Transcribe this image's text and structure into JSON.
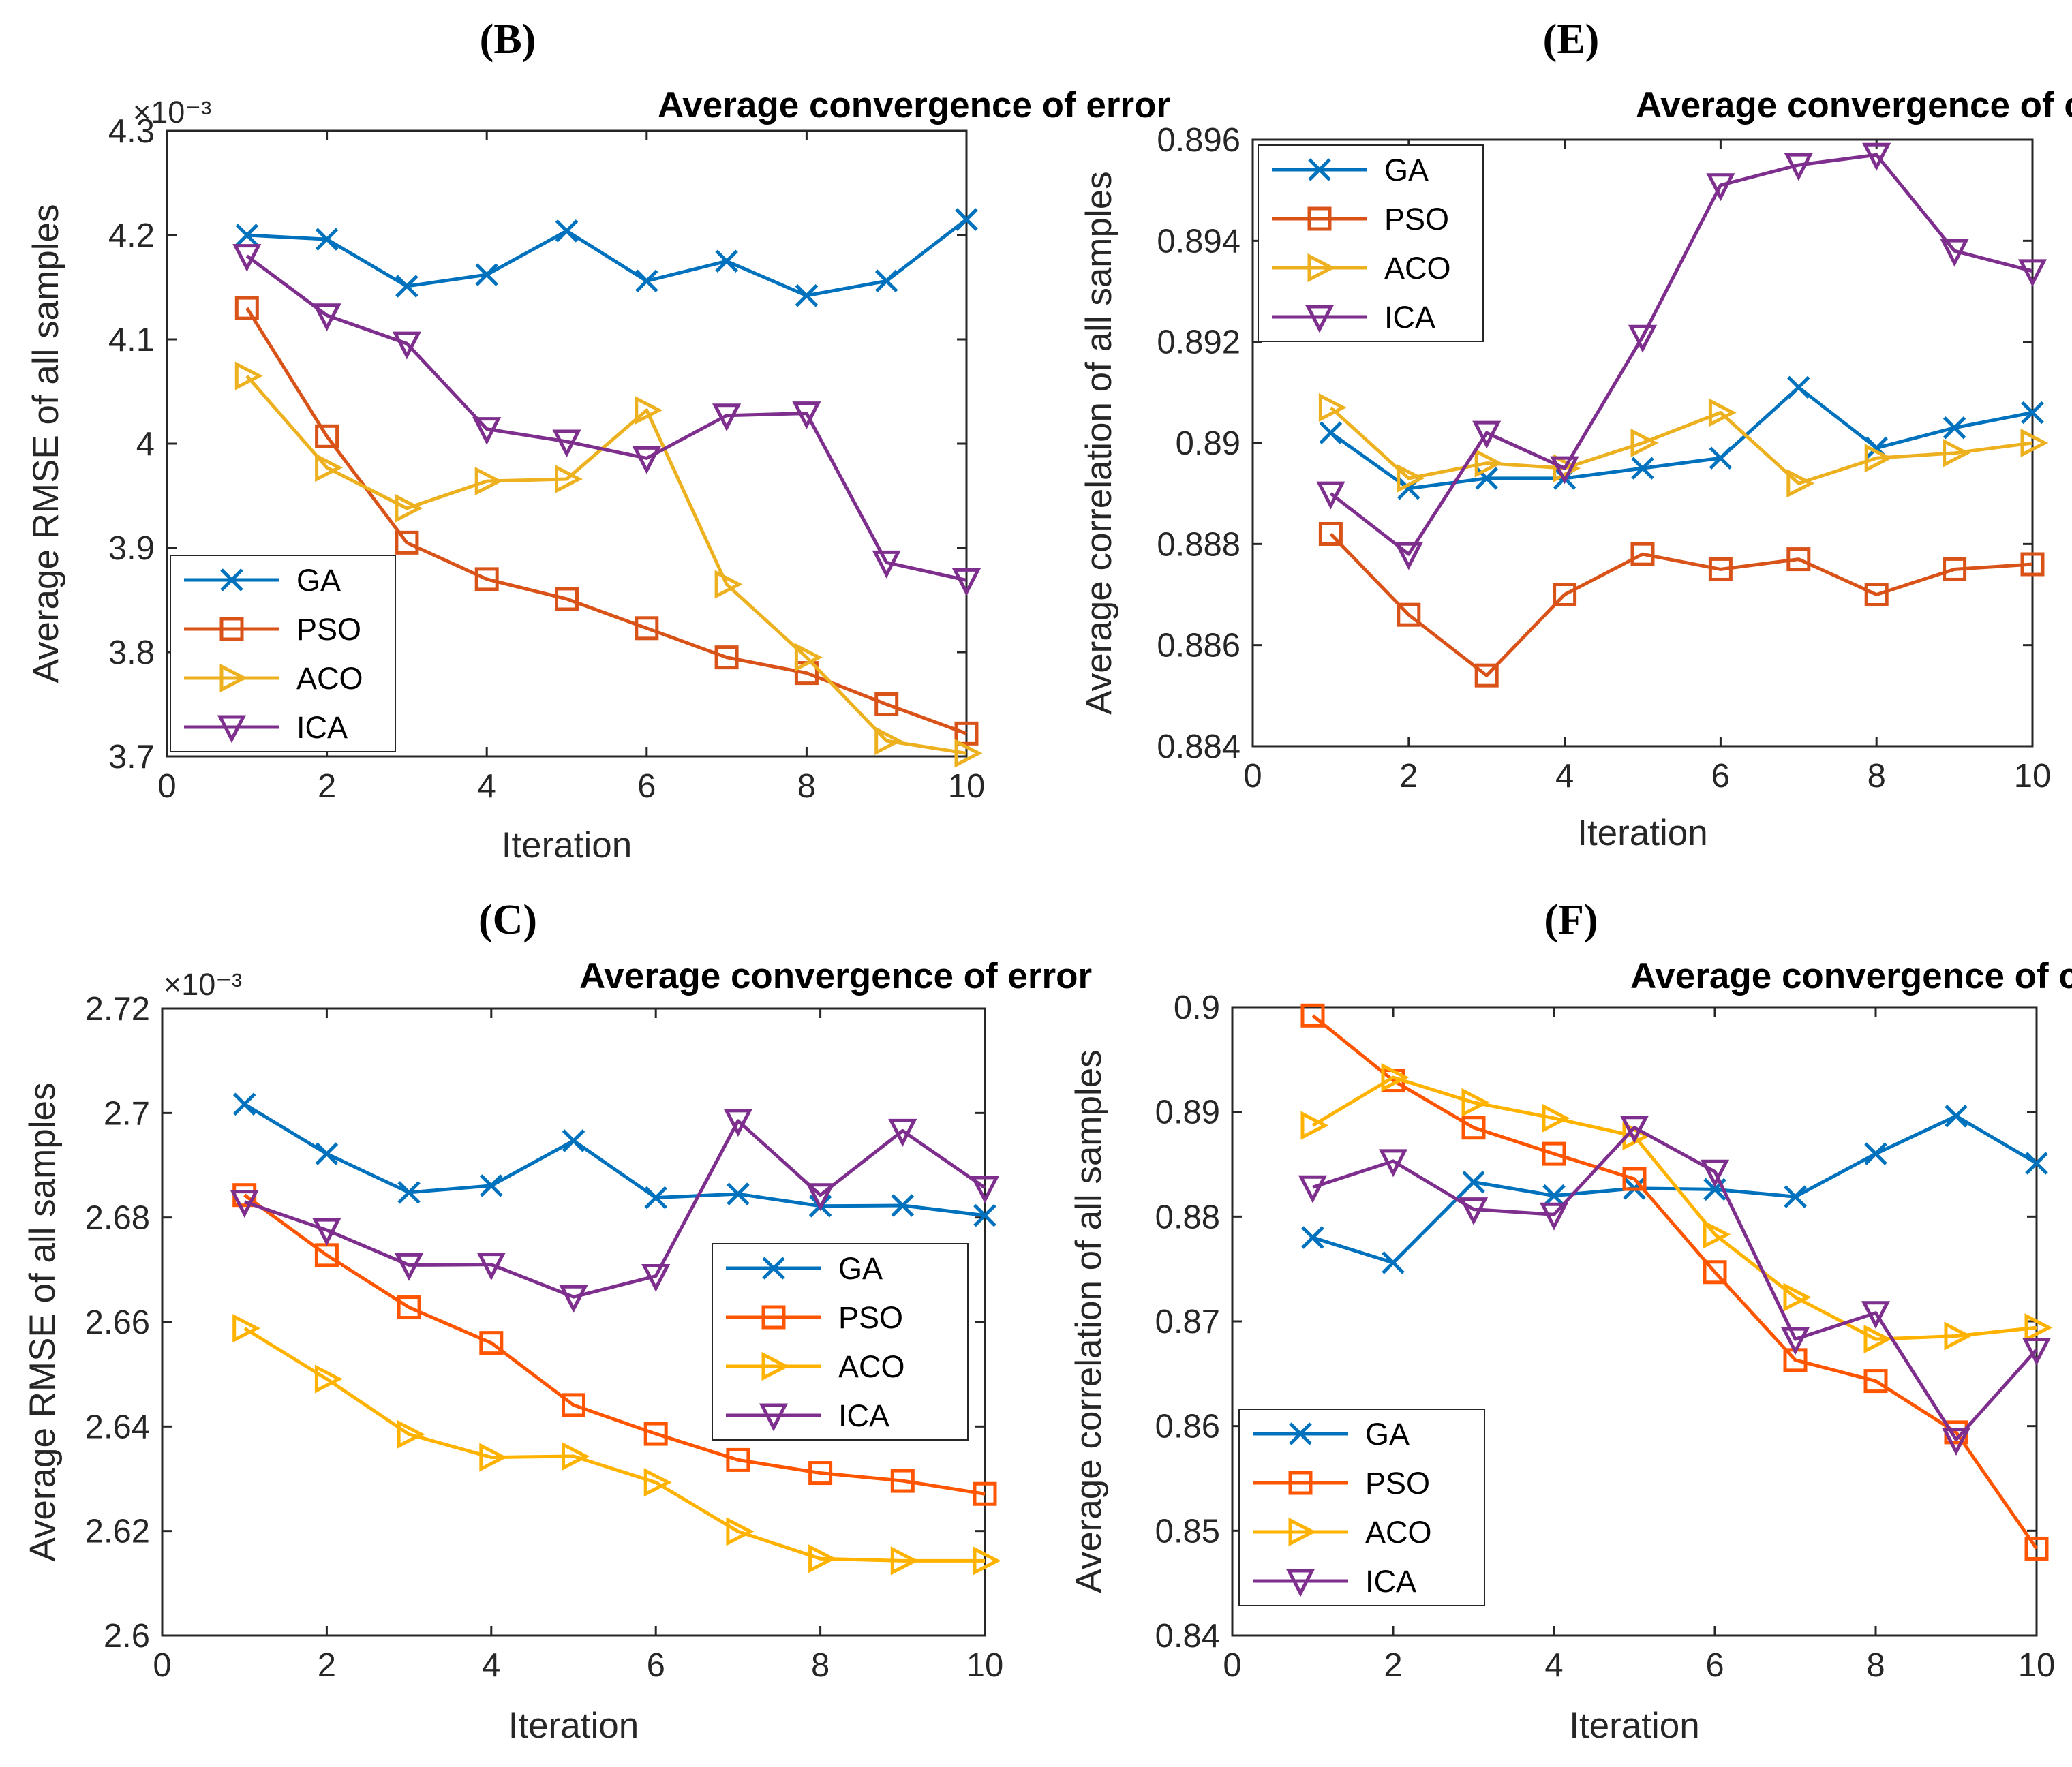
{
  "chart_data": [
    {
      "id": "B",
      "panel_label": "(B)",
      "type": "line",
      "title": "Average convergence of error",
      "xlabel": "Iteration",
      "ylabel": "Average RMSE of all samples",
      "xlim": [
        0,
        10
      ],
      "ylim": [
        3.7,
        4.3
      ],
      "xticks": [
        "0",
        "2",
        "4",
        "6",
        "8",
        "10"
      ],
      "yticks": [
        "3.7",
        "3.8",
        "3.9",
        "4",
        "4.1",
        "4.2",
        "4.3"
      ],
      "multiplier": "×10⁻³",
      "legend_position": "bottom-left",
      "x": [
        1,
        2,
        3,
        4,
        5,
        6,
        7,
        8,
        9,
        10
      ],
      "series": [
        {
          "name": "GA",
          "color": "#0072BD",
          "marker": "x",
          "values": [
            4.2,
            4.196,
            4.151,
            4.162,
            4.204,
            4.156,
            4.175,
            4.142,
            4.156,
            4.215
          ]
        },
        {
          "name": "PSO",
          "color": "#D95319",
          "marker": "square",
          "values": [
            4.13,
            4.007,
            3.905,
            3.87,
            3.851,
            3.823,
            3.795,
            3.78,
            3.75,
            3.722
          ]
        },
        {
          "name": "ACO",
          "color": "#EDB120",
          "marker": "triangle-right",
          "values": [
            4.065,
            3.977,
            3.938,
            3.964,
            3.966,
            4.032,
            3.865,
            3.795,
            3.715,
            3.703
          ]
        },
        {
          "name": "ICA",
          "color": "#7E2F8E",
          "marker": "triangle-down",
          "values": [
            4.18,
            4.123,
            4.096,
            4.014,
            4.002,
            3.986,
            4.027,
            4.029,
            3.886,
            3.869
          ]
        }
      ]
    },
    {
      "id": "E",
      "panel_label": "(E)",
      "type": "line",
      "title": "Average convergence of correlation",
      "xlabel": "Iteration",
      "ylabel": "Average correlation of all samples",
      "xlim": [
        0,
        10
      ],
      "ylim": [
        0.884,
        0.896
      ],
      "xticks": [
        "0",
        "2",
        "4",
        "6",
        "8",
        "10"
      ],
      "yticks": [
        "0.884",
        "0.886",
        "0.888",
        "0.89",
        "0.892",
        "0.894",
        "0.896"
      ],
      "legend_position": "top-left",
      "x": [
        1,
        2,
        3,
        4,
        5,
        6,
        7,
        8,
        9,
        10
      ],
      "series": [
        {
          "name": "GA",
          "color": "#0072BD",
          "marker": "x",
          "values": [
            0.8902,
            0.8891,
            0.8893,
            0.8893,
            0.8895,
            0.8897,
            0.8911,
            0.8899,
            0.8903,
            0.8906
          ]
        },
        {
          "name": "PSO",
          "color": "#D95319",
          "marker": "square",
          "values": [
            0.8882,
            0.8866,
            0.8854,
            0.887,
            0.8878,
            0.8875,
            0.8877,
            0.887,
            0.8875,
            0.8876
          ]
        },
        {
          "name": "ACO",
          "color": "#EDB120",
          "marker": "triangle-right",
          "values": [
            0.8907,
            0.8893,
            0.8896,
            0.8895,
            0.89,
            0.8906,
            0.8892,
            0.8897,
            0.8898,
            0.89
          ]
        },
        {
          "name": "ICA",
          "color": "#7E2F8E",
          "marker": "triangle-down",
          "values": [
            0.889,
            0.8878,
            0.8902,
            0.8895,
            0.8921,
            0.8951,
            0.8955,
            0.8957,
            0.8938,
            0.8934
          ]
        }
      ]
    },
    {
      "id": "C",
      "panel_label": "(C)",
      "type": "line",
      "title": "Average convergence of error",
      "xlabel": "Iteration",
      "ylabel": "Average RMSE of all samples",
      "xlim": [
        0,
        10
      ],
      "ylim": [
        2.6,
        2.72
      ],
      "xticks": [
        "0",
        "2",
        "4",
        "6",
        "8",
        "10"
      ],
      "yticks": [
        "2.6",
        "2.62",
        "2.64",
        "2.66",
        "2.68",
        "2.7",
        "2.72"
      ],
      "multiplier": "×10⁻³",
      "legend_position": "middle-right",
      "x": [
        1,
        2,
        3,
        4,
        5,
        6,
        7,
        8,
        9,
        10
      ],
      "series": [
        {
          "name": "GA",
          "color": "#0072BD",
          "marker": "x",
          "values": [
            2.7017,
            2.6922,
            2.6848,
            2.6861,
            2.6947,
            2.6838,
            2.6845,
            2.6822,
            2.6823,
            2.6804
          ]
        },
        {
          "name": "PSO",
          "color": "#FF5500",
          "marker": "square",
          "values": [
            2.6843,
            2.6728,
            2.6628,
            2.656,
            2.6441,
            2.6386,
            2.6336,
            2.6311,
            2.6296,
            2.6271
          ]
        },
        {
          "name": "ACO",
          "color": "#FFB300",
          "marker": "triangle-right",
          "values": [
            2.6588,
            2.6491,
            2.6385,
            2.6341,
            2.6343,
            2.6293,
            2.6199,
            2.6147,
            2.6143,
            2.6143
          ]
        },
        {
          "name": "ICA",
          "color": "#7E2F8E",
          "marker": "triangle-down",
          "values": [
            2.683,
            2.6776,
            2.6709,
            2.671,
            2.6648,
            2.6688,
            2.6985,
            2.6843,
            2.6966,
            2.6857
          ]
        }
      ]
    },
    {
      "id": "F",
      "panel_label": "(F)",
      "type": "line",
      "title": "Average convergence of correlation",
      "xlabel": "Iteration",
      "ylabel": "Average correlation of all samples",
      "xlim": [
        0,
        10
      ],
      "ylim": [
        0.84,
        0.9
      ],
      "xticks": [
        "0",
        "2",
        "4",
        "6",
        "8",
        "10"
      ],
      "yticks": [
        "0.84",
        "0.85",
        "0.86",
        "0.87",
        "0.88",
        "0.89",
        "0.9"
      ],
      "legend_position": "bottom-left",
      "x": [
        1,
        2,
        3,
        4,
        5,
        6,
        7,
        8,
        9,
        10
      ],
      "series": [
        {
          "name": "GA",
          "color": "#0072BD",
          "marker": "x",
          "values": [
            0.878,
            0.8756,
            0.8833,
            0.882,
            0.8827,
            0.8826,
            0.8819,
            0.886,
            0.8896,
            0.8851
          ]
        },
        {
          "name": "PSO",
          "color": "#FF5500",
          "marker": "square",
          "values": [
            0.8992,
            0.893,
            0.8885,
            0.886,
            0.8836,
            0.8747,
            0.8663,
            0.8643,
            0.8594,
            0.8483
          ]
        },
        {
          "name": "ACO",
          "color": "#FFB300",
          "marker": "triangle-right",
          "values": [
            0.8887,
            0.8933,
            0.8909,
            0.8894,
            0.8877,
            0.8783,
            0.8723,
            0.8683,
            0.8686,
            0.8694
          ]
        },
        {
          "name": "ICA",
          "color": "#7E2F8E",
          "marker": "triangle-down",
          "values": [
            0.8828,
            0.8853,
            0.8807,
            0.8802,
            0.8885,
            0.8843,
            0.8683,
            0.8708,
            0.8587,
            0.8673
          ]
        }
      ]
    }
  ]
}
